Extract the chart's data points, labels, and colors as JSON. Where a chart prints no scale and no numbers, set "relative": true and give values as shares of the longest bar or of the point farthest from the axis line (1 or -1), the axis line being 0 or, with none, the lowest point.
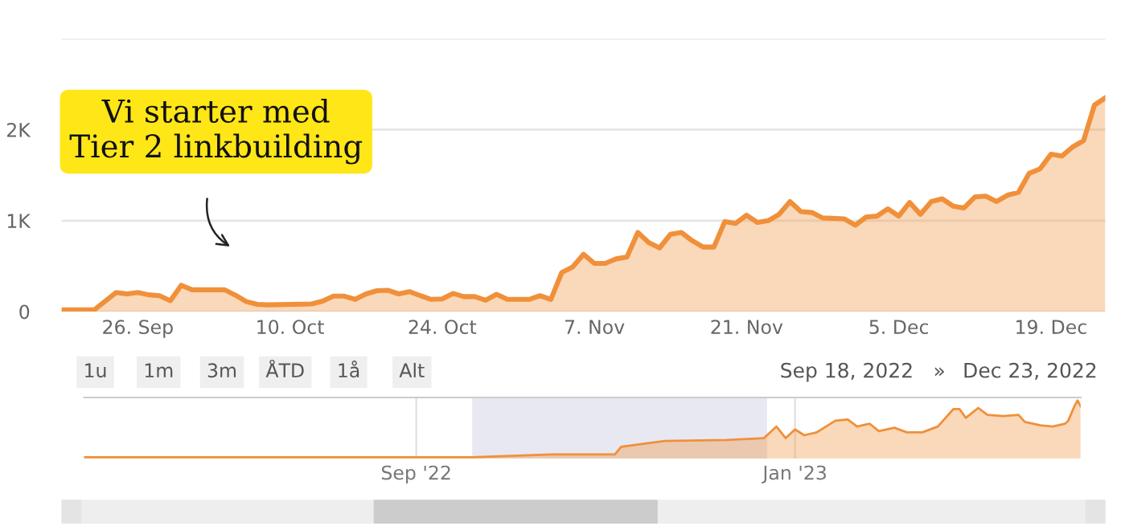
{
  "chart_data": [
    {
      "type": "area",
      "x": [
        "2022-09-19",
        "2022-09-22",
        "2022-09-24",
        "2022-09-25",
        "2022-09-26",
        "2022-09-27",
        "2022-09-28",
        "2022-09-29",
        "2022-09-30",
        "2022-10-01",
        "2022-10-02",
        "2022-10-04",
        "2022-10-05",
        "2022-10-06",
        "2022-10-07",
        "2022-10-08",
        "2022-10-12",
        "2022-10-13",
        "2022-10-14",
        "2022-10-15",
        "2022-10-16",
        "2022-10-17",
        "2022-10-18",
        "2022-10-19",
        "2022-10-20",
        "2022-10-21",
        "2022-10-22",
        "2022-10-23",
        "2022-10-24",
        "2022-10-25",
        "2022-10-26",
        "2022-10-27",
        "2022-10-28",
        "2022-10-29",
        "2022-10-30",
        "2022-11-01",
        "2022-11-02",
        "2022-11-03",
        "2022-11-04",
        "2022-11-05",
        "2022-11-06",
        "2022-11-07",
        "2022-11-08",
        "2022-11-09",
        "2022-11-10",
        "2022-11-11",
        "2022-11-12",
        "2022-11-13",
        "2022-11-14",
        "2022-11-15",
        "2022-11-16",
        "2022-11-17",
        "2022-11-18",
        "2022-11-19",
        "2022-11-20",
        "2022-11-21",
        "2022-11-22",
        "2022-11-23",
        "2022-11-24",
        "2022-11-25",
        "2022-11-26",
        "2022-11-27",
        "2022-11-28",
        "2022-11-30",
        "2022-12-01",
        "2022-12-02",
        "2022-12-03",
        "2022-12-04",
        "2022-12-05",
        "2022-12-06",
        "2022-12-07",
        "2022-12-08",
        "2022-12-09",
        "2022-12-10",
        "2022-12-11",
        "2022-12-12",
        "2022-12-13",
        "2022-12-14",
        "2022-12-15",
        "2022-12-16",
        "2022-12-17",
        "2022-12-18",
        "2022-12-19",
        "2022-12-20",
        "2022-12-21",
        "2022-12-22",
        "2022-12-23",
        "2022-12-24"
      ],
      "series": [
        {
          "color": "#f0903a",
          "values": [
            20,
            20,
            210,
            195,
            210,
            185,
            175,
            120,
            290,
            240,
            240,
            240,
            180,
            110,
            80,
            75,
            85,
            115,
            170,
            170,
            135,
            195,
            230,
            235,
            195,
            220,
            175,
            135,
            140,
            200,
            165,
            165,
            125,
            190,
            135,
            135,
            175,
            135,
            430,
            490,
            630,
            530,
            530,
            580,
            600,
            870,
            760,
            700,
            850,
            870,
            780,
            710,
            710,
            990,
            970,
            1060,
            980,
            1000,
            1070,
            1210,
            1100,
            1090,
            1030,
            1020,
            950,
            1040,
            1050,
            1130,
            1050,
            1200,
            1070,
            1210,
            1240,
            1160,
            1140,
            1260,
            1270,
            1210,
            1280,
            1310,
            1520,
            1570,
            1730,
            1710,
            1810,
            1880,
            2270,
            2350
          ]
        }
      ],
      "xlim": [
        "2022-09-19",
        "2022-12-24"
      ],
      "xticks": [
        {
          "value": "2022-09-26",
          "label": "26. Sep"
        },
        {
          "value": "2022-10-10",
          "label": "10. Oct"
        },
        {
          "value": "2022-10-24",
          "label": "24. Oct"
        },
        {
          "value": "2022-11-07",
          "label": "7. Nov"
        },
        {
          "value": "2022-11-21",
          "label": "21. Nov"
        },
        {
          "value": "2022-12-05",
          "label": "5. Dec"
        },
        {
          "value": "2022-12-19",
          "label": "19. Dec"
        }
      ],
      "ylim": [
        0,
        3000
      ],
      "yticks": [
        0,
        {
          "value": 1000,
          "label": "1K"
        },
        {
          "value": 2000,
          "label": "2K"
        },
        {
          "value": 3000,
          "label": null
        }
      ],
      "grid": "y",
      "annotations": [
        "Vi starter med\nTier 2 linkbuilding",
        "1u",
        "1m",
        "3m",
        "ÅTD",
        "1å",
        "Alt",
        "Sep 18, 2022",
        "»",
        "Dec 23, 2022"
      ]
    },
    {
      "type": "area",
      "relative": true,
      "x": [
        "2022-05-17",
        "2022-09-19",
        "2022-10-15",
        "2022-11-04",
        "2022-11-06",
        "2022-11-20",
        "2022-12-10",
        "2022-12-22",
        "2022-12-26",
        "2022-12-29",
        "2023-01-01",
        "2023-01-04",
        "2023-01-08",
        "2023-01-14",
        "2023-01-18",
        "2023-01-21",
        "2023-01-25",
        "2023-01-28",
        "2023-02-02",
        "2023-02-06",
        "2023-02-11",
        "2023-02-16",
        "2023-02-21",
        "2023-02-23",
        "2023-02-25",
        "2023-03-01",
        "2023-03-04",
        "2023-03-09",
        "2023-03-14",
        "2023-03-16",
        "2023-03-21",
        "2023-03-25",
        "2023-03-29",
        "2023-03-30",
        "2023-04-01",
        "2023-04-02",
        "2023-04-03"
      ],
      "series": [
        {
          "color": "#f0903a",
          "values": [
            0.02,
            0.02,
            0.07,
            0.07,
            0.2,
            0.3,
            0.32,
            0.35,
            0.55,
            0.35,
            0.5,
            0.4,
            0.45,
            0.65,
            0.67,
            0.55,
            0.6,
            0.47,
            0.53,
            0.45,
            0.45,
            0.55,
            0.85,
            0.85,
            0.7,
            0.87,
            0.75,
            0.73,
            0.75,
            0.63,
            0.57,
            0.55,
            0.6,
            0.65,
            0.9,
            1.0,
            0.9
          ]
        }
      ],
      "xlim": [
        "2022-05-17",
        "2023-04-03"
      ],
      "xticks": [
        {
          "value": "2022-09-01",
          "label": "Sep '22"
        },
        {
          "value": "2023-01-01",
          "label": "Jan '23"
        }
      ],
      "grid": "x",
      "bands": [
        {
          "axis": "x",
          "from": "2022-09-19",
          "to": "2022-12-23",
          "color": "#e8e8f2"
        }
      ]
    }
  ]
}
